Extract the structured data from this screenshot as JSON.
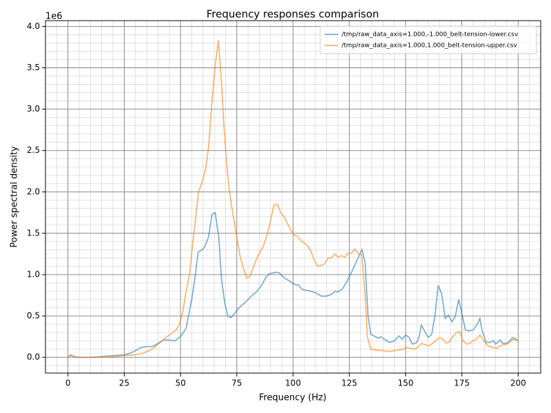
{
  "chart_data": {
    "type": "line",
    "title": "Frequency responses comparison",
    "xlabel": "Frequency (Hz)",
    "ylabel": "Power spectral density",
    "y_offset_label": "1e6",
    "xlim": [
      -10,
      210
    ],
    "ylim": [
      -0.19,
      4.07
    ],
    "xticks": [
      0,
      25,
      50,
      75,
      100,
      125,
      150,
      175,
      200
    ],
    "yticks": [
      {
        "value": 0,
        "label": "0.0"
      },
      {
        "value": 0.5,
        "label": "0.5"
      },
      {
        "value": 1,
        "label": "1.0"
      },
      {
        "value": 1.5,
        "label": "1.5"
      },
      {
        "value": 2,
        "label": "2.0"
      },
      {
        "value": 2.5,
        "label": "2.5"
      },
      {
        "value": 3,
        "label": "3.0"
      },
      {
        "value": 3.5,
        "label": "3.5"
      },
      {
        "value": 4,
        "label": "4.0"
      }
    ],
    "grid": true,
    "minor_grid": true,
    "legend": "upper right",
    "alpha": 0.6,
    "series": [
      {
        "name": "/tmp/raw_data_axis=1.000,-1.000_belt-tension-lower.csv",
        "color": "#1f77b4",
        "x": [
          0,
          1.25,
          2.5,
          5,
          7.5,
          10,
          12.5,
          15,
          17.5,
          20,
          22.5,
          25,
          27.5,
          30,
          32.5,
          35,
          37.5,
          40,
          42.5,
          45,
          47.5,
          50,
          52.5,
          53.3,
          55,
          56.6,
          57.8,
          59.7,
          61,
          62.4,
          64,
          65.4,
          67,
          68.2,
          69.7,
          71,
          72.4,
          74,
          76,
          79,
          81,
          84,
          86,
          88,
          89.5,
          92.5,
          94,
          95.6,
          98.6,
          100,
          102.6,
          104,
          106,
          108,
          110,
          112.6,
          114.8,
          117,
          118.7,
          120,
          122,
          124,
          126,
          128,
          130.6,
          132,
          133.3,
          134.5,
          138,
          139,
          141,
          143,
          145,
          147,
          148.5,
          150,
          151.6,
          153,
          155,
          156,
          157,
          158.8,
          160,
          161.6,
          163,
          164.5,
          166,
          167.6,
          169,
          170.6,
          172,
          173.6,
          175,
          176.6,
          178,
          180,
          182,
          183,
          184,
          185.8,
          187.4,
          189,
          190,
          192,
          193,
          195,
          196,
          197.5,
          199,
          200
        ],
        "values": [
          0,
          0.03,
          0.01,
          0,
          0,
          0,
          0.005,
          0.01,
          0.015,
          0.02,
          0.025,
          0.03,
          0.05,
          0.08,
          0.12,
          0.13,
          0.13,
          0.17,
          0.21,
          0.21,
          0.2,
          0.25,
          0.35,
          0.47,
          0.7,
          1.0,
          1.27,
          1.3,
          1.35,
          1.45,
          1.73,
          1.75,
          1.45,
          0.95,
          0.65,
          0.5,
          0.48,
          0.53,
          0.6,
          0.67,
          0.73,
          0.8,
          0.87,
          0.97,
          1.01,
          1.03,
          1.02,
          0.97,
          0.92,
          0.89,
          0.87,
          0.82,
          0.81,
          0.8,
          0.78,
          0.74,
          0.74,
          0.76,
          0.8,
          0.79,
          0.83,
          0.92,
          1.03,
          1.15,
          1.3,
          1.15,
          0.5,
          0.28,
          0.23,
          0.25,
          0.21,
          0.18,
          0.2,
          0.26,
          0.22,
          0.27,
          0.24,
          0.16,
          0.18,
          0.25,
          0.39,
          0.3,
          0.24,
          0.28,
          0.5,
          0.87,
          0.77,
          0.47,
          0.51,
          0.43,
          0.49,
          0.7,
          0.53,
          0.33,
          0.32,
          0.33,
          0.41,
          0.47,
          0.32,
          0.18,
          0.18,
          0.2,
          0.16,
          0.21,
          0.17,
          0.17,
          0.19,
          0.24,
          0.22,
          0.2
        ]
      },
      {
        "name": "/tmp/raw_data_axis=1.000,1.000_belt-tension-upper.csv",
        "color": "#ff7f0e",
        "x": [
          0,
          1.25,
          2.5,
          5,
          10,
          15,
          20,
          25,
          30,
          33,
          36,
          38,
          40,
          42,
          44,
          46,
          48,
          49.5,
          51,
          52.5,
          54,
          55.5,
          57,
          58,
          60,
          61.3,
          62.5,
          64,
          65.5,
          66.8,
          68,
          69.4,
          70.8,
          72,
          73.5,
          75,
          76.5,
          78,
          79.5,
          81,
          82.4,
          84,
          85.5,
          87,
          88.5,
          90,
          91.5,
          93,
          94.5,
          96,
          97.5,
          99,
          100.5,
          102,
          103.5,
          105,
          106.5,
          108,
          109.5,
          111,
          112.5,
          114,
          115.5,
          117,
          118.5,
          120,
          121.5,
          123,
          124.5,
          126,
          127.5,
          129,
          130.5,
          132,
          133,
          134.5,
          137,
          140,
          143,
          145,
          147,
          149,
          150,
          152,
          154,
          155.5,
          157,
          159,
          160.5,
          162,
          164,
          165.5,
          166.5,
          168,
          169.5,
          171,
          172.5,
          174,
          175.5,
          177,
          178.5,
          180,
          181.5,
          183,
          184.5,
          186,
          187.5,
          189,
          190.5,
          192,
          193.5,
          195,
          196.5,
          198,
          200
        ],
        "values": [
          0,
          0.03,
          0.01,
          0,
          0,
          0.005,
          0.01,
          0.02,
          0.03,
          0.05,
          0.08,
          0.11,
          0.16,
          0.2,
          0.25,
          0.29,
          0.33,
          0.4,
          0.55,
          0.8,
          1.0,
          1.4,
          1.75,
          2.0,
          2.15,
          2.3,
          2.55,
          3.1,
          3.55,
          3.83,
          3.4,
          2.75,
          2.25,
          1.95,
          1.7,
          1.45,
          1.22,
          1.07,
          0.96,
          0.98,
          1.1,
          1.2,
          1.28,
          1.36,
          1.48,
          1.65,
          1.84,
          1.85,
          1.75,
          1.7,
          1.62,
          1.54,
          1.48,
          1.46,
          1.41,
          1.38,
          1.35,
          1.28,
          1.17,
          1.1,
          1.11,
          1.13,
          1.2,
          1.2,
          1.25,
          1.21,
          1.23,
          1.21,
          1.26,
          1.26,
          1.31,
          1.25,
          1.24,
          0.75,
          0.25,
          0.1,
          0.09,
          0.08,
          0.07,
          0.08,
          0.09,
          0.1,
          0.12,
          0.11,
          0.1,
          0.12,
          0.17,
          0.15,
          0.14,
          0.17,
          0.22,
          0.24,
          0.22,
          0.17,
          0.19,
          0.25,
          0.3,
          0.31,
          0.2,
          0.16,
          0.17,
          0.2,
          0.22,
          0.27,
          0.21,
          0.15,
          0.13,
          0.12,
          0.11,
          0.14,
          0.15,
          0.16,
          0.19,
          0.22,
          0.2
        ]
      }
    ]
  }
}
